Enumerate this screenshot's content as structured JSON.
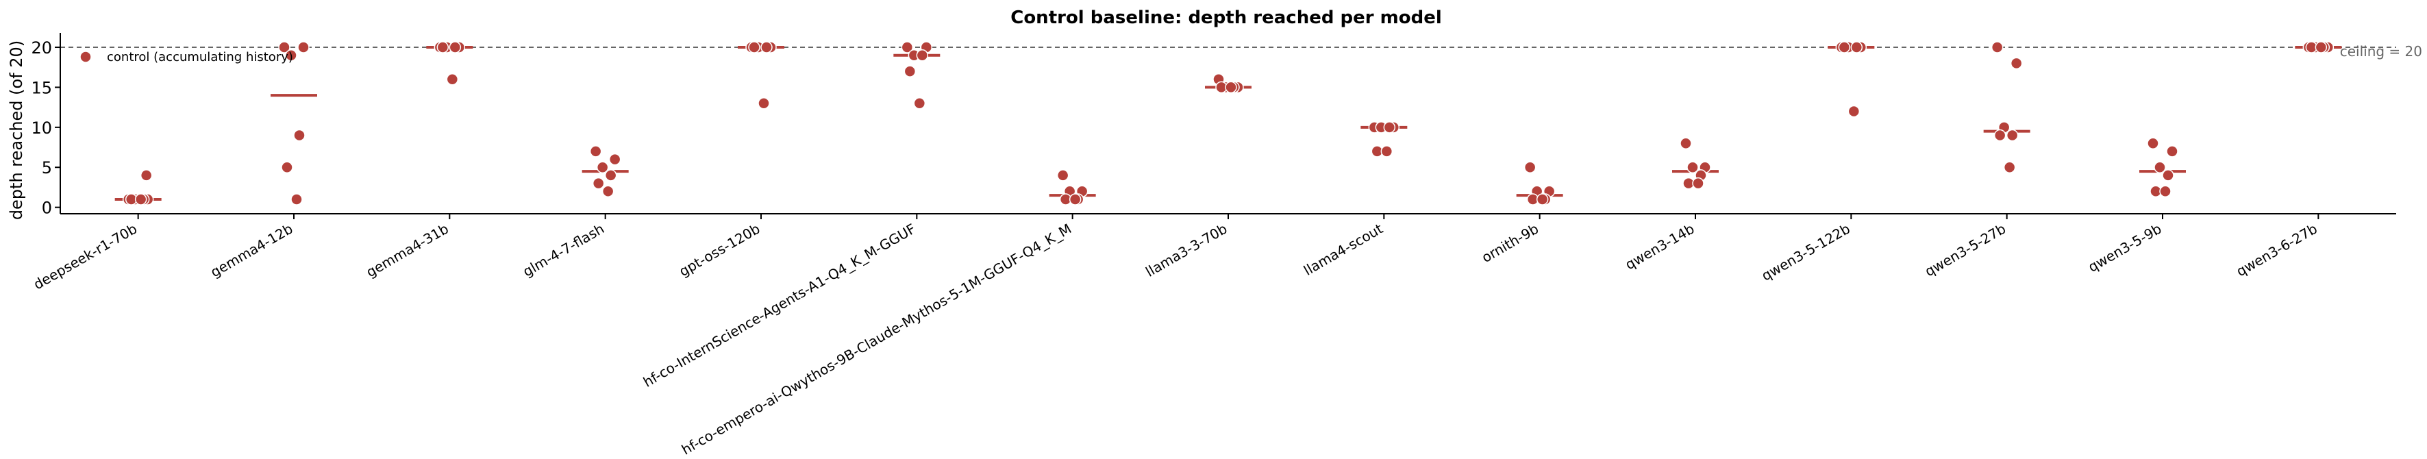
{
  "chart_data": {
    "type": "scatter",
    "title": "Control baseline: depth reached per model",
    "xlabel": "",
    "ylabel": "depth reached (of 20)",
    "ylim": [
      -0.8,
      21.8
    ],
    "yticks": [
      0,
      5,
      10,
      15,
      20
    ],
    "ceiling": {
      "value": 20,
      "label": "ceiling = 20"
    },
    "legend": {
      "position": "top-left",
      "label": "control (accumulating history)"
    },
    "colors": {
      "points": "#b5403a",
      "median": "#b5403a",
      "ceiling": "#666666",
      "axis": "#000000"
    },
    "categories": [
      "deepseek-r1-70b",
      "gemma4-12b",
      "gemma4-31b",
      "glm-4-7-flash",
      "gpt-oss-120b",
      "hf-co-InternScience-Agents-A1-Q4_K_M-GGUF",
      "hf-co-empero-ai-Qwythos-9B-Claude-Mythos-5-1M-GGUF-Q4_K_M",
      "llama3-3-70b",
      "llama4-scout",
      "ornith-9b",
      "qwen3-14b",
      "qwen3-5-122b",
      "qwen3-5-27b",
      "qwen3-5-9b",
      "qwen3-6-27b"
    ],
    "series": [
      {
        "name": "control (accumulating history)",
        "points": [
          [
            1,
            1,
            1,
            1,
            1,
            1,
            4
          ],
          [
            20,
            20,
            19,
            9,
            5,
            1
          ],
          [
            20,
            20,
            20,
            20,
            20,
            16
          ],
          [
            7,
            6,
            5,
            4,
            3,
            2
          ],
          [
            20,
            20,
            20,
            20,
            20,
            13
          ],
          [
            20,
            20,
            19,
            19,
            17,
            13
          ],
          [
            4,
            2,
            2,
            1,
            1,
            1
          ],
          [
            16,
            15,
            15,
            15,
            15,
            15
          ],
          [
            10,
            10,
            10,
            10,
            7,
            7
          ],
          [
            5,
            2,
            2,
            1,
            1,
            1
          ],
          [
            8,
            5,
            5,
            4,
            3,
            3
          ],
          [
            20,
            20,
            20,
            20,
            20,
            12
          ],
          [
            20,
            18,
            10,
            9,
            9,
            5
          ],
          [
            8,
            7,
            5,
            4,
            2,
            2
          ],
          [
            20,
            20,
            20,
            20,
            20,
            20
          ]
        ],
        "medians": [
          1,
          14,
          20,
          4.5,
          20,
          19,
          1.5,
          15,
          10,
          1.5,
          4.5,
          20,
          9.5,
          4.5,
          20
        ]
      }
    ]
  }
}
